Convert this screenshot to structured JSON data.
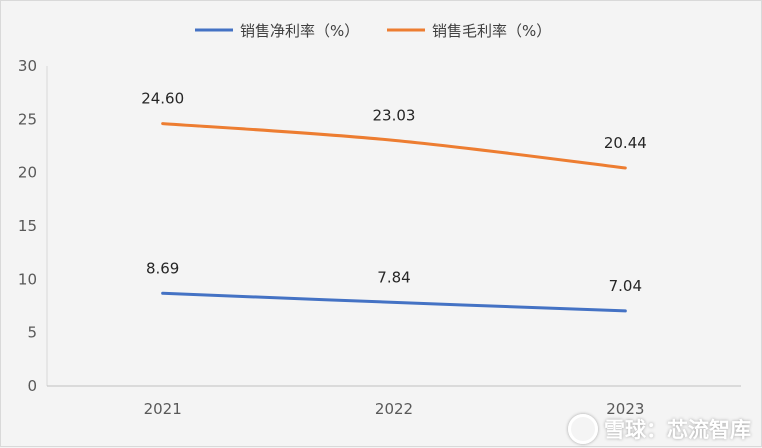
{
  "chart_data": {
    "type": "line",
    "title": "",
    "xlabel": "",
    "ylabel": "",
    "categories": [
      "2021",
      "2022",
      "2023"
    ],
    "ylim": [
      0,
      30
    ],
    "yticks": [
      0,
      5,
      10,
      15,
      20,
      25,
      30
    ],
    "grid": false,
    "legend_position": "top",
    "series": [
      {
        "name": "销售净利率（%）",
        "values": [
          8.69,
          7.84,
          7.04
        ],
        "labels": [
          "8.69",
          "7.84",
          "7.04"
        ],
        "color": "#4472c4"
      },
      {
        "name": "销售毛利率（%）",
        "values": [
          24.6,
          23.03,
          20.44
        ],
        "labels": [
          "24.60",
          "23.03",
          "20.44"
        ],
        "color": "#ed7d31"
      }
    ]
  },
  "watermark": {
    "text": "雪球：芯流智库",
    "icon": "snowball-logo"
  }
}
